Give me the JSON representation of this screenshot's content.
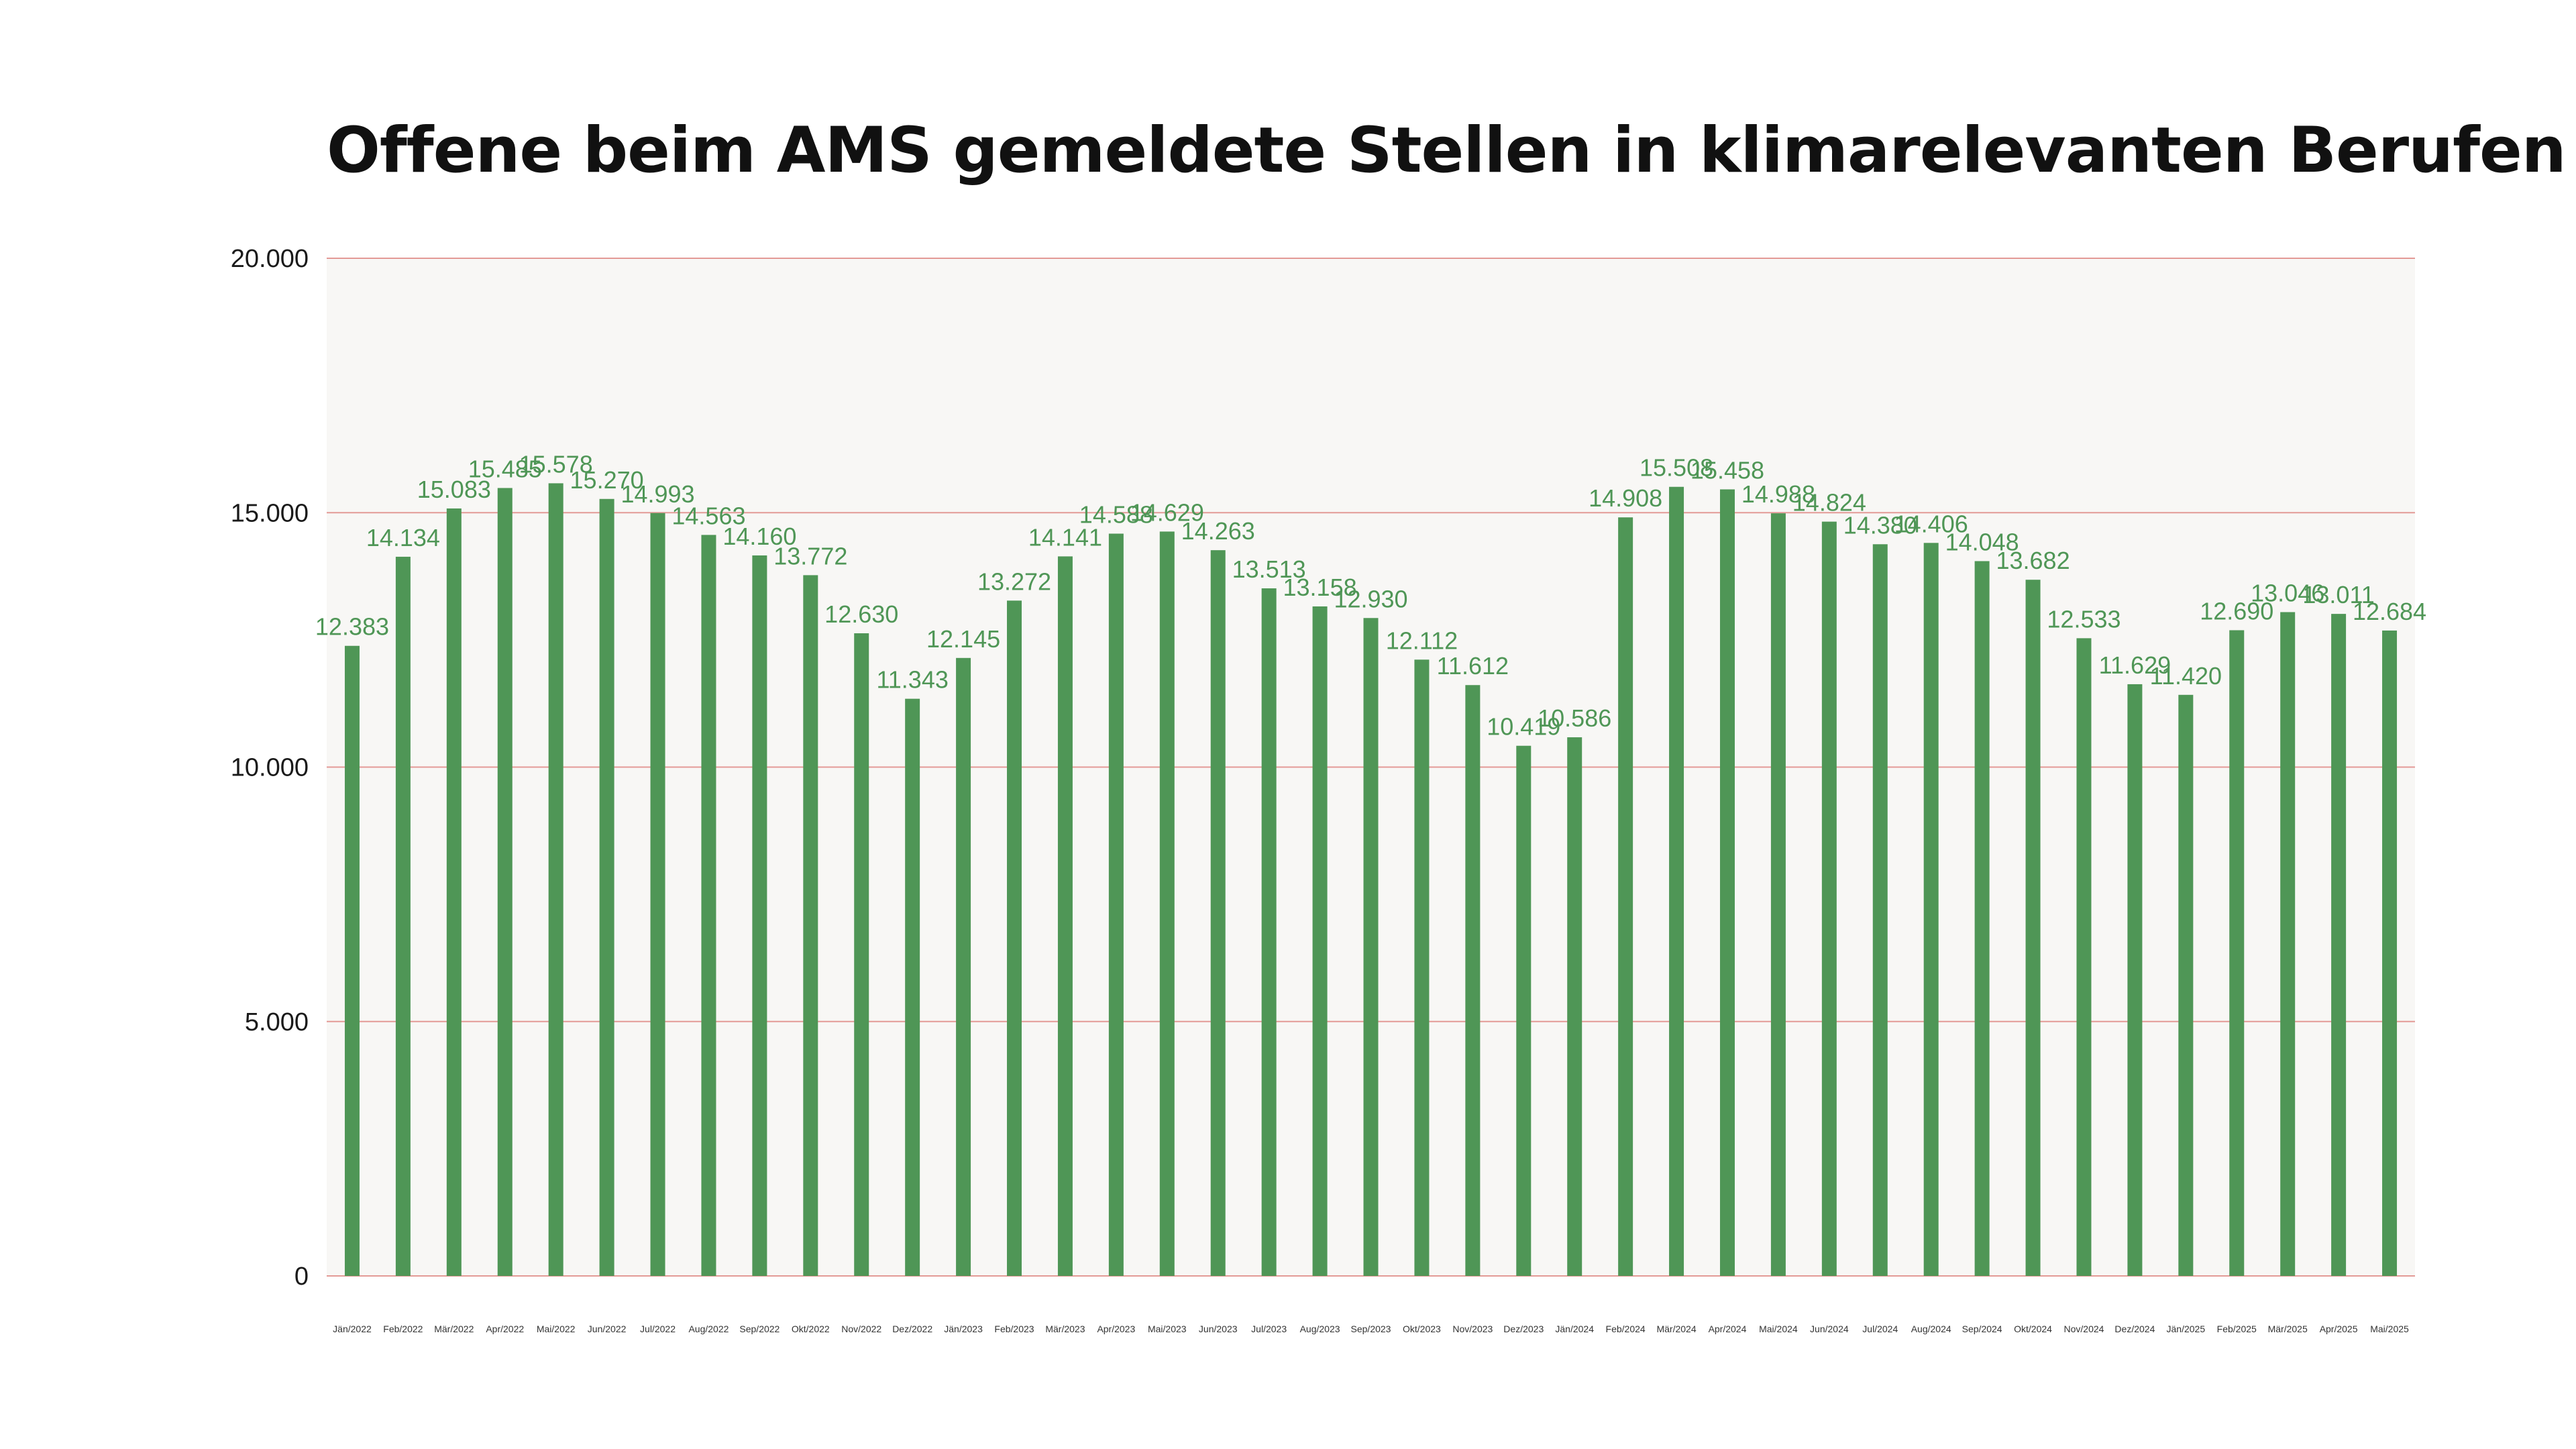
{
  "title": "Offene beim AMS gemeldete Stellen in klimarelevanten Berufen",
  "colors": {
    "bar": "#4f9656",
    "data_label": "#4f9656",
    "plot_background": "#f8f7f5",
    "gridline": "#e39a96",
    "title": "#111111"
  },
  "chart_data": {
    "type": "bar",
    "title": "Offene beim AMS gemeldete Stellen in klimarelevanten Berufen",
    "xlabel": "",
    "ylabel": "",
    "ylim": [
      0,
      20000
    ],
    "yticks": [
      0,
      5000,
      10000,
      15000,
      20000
    ],
    "ytick_labels": [
      "0",
      "5.000",
      "10.000",
      "15.000",
      "20.000"
    ],
    "grid": true,
    "legend": "none",
    "categories": [
      "Jän/2022",
      "Feb/2022",
      "Mär/2022",
      "Apr/2022",
      "Mai/2022",
      "Jun/2022",
      "Jul/2022",
      "Aug/2022",
      "Sep/2022",
      "Okt/2022",
      "Nov/2022",
      "Dez/2022",
      "Jän/2023",
      "Feb/2023",
      "Mär/2023",
      "Apr/2023",
      "Mai/2023",
      "Jun/2023",
      "Jul/2023",
      "Aug/2023",
      "Sep/2023",
      "Okt/2023",
      "Nov/2023",
      "Dez/2023",
      "Jän/2024",
      "Feb/2024",
      "Mär/2024",
      "Apr/2024",
      "Mai/2024",
      "Jun/2024",
      "Jul/2024",
      "Aug/2024",
      "Sep/2024",
      "Okt/2024",
      "Nov/2024",
      "Dez/2024",
      "Jän/2025",
      "Feb/2025",
      "Mär/2025",
      "Apr/2025",
      "Mai/2025"
    ],
    "values": [
      12383,
      14134,
      15083,
      15485,
      15578,
      15270,
      14993,
      14563,
      14160,
      13772,
      12630,
      11343,
      12145,
      13272,
      14141,
      14588,
      14629,
      14263,
      13513,
      13158,
      12930,
      12112,
      11612,
      10419,
      10586,
      14908,
      15508,
      15458,
      14988,
      14824,
      14380,
      14406,
      14048,
      13682,
      12533,
      11629,
      11420,
      12690,
      13046,
      13011,
      12684
    ],
    "value_labels": [
      "12.383",
      "14.134",
      "15.083",
      "15.485",
      "15.578",
      "15.270",
      "14.993",
      "14.563",
      "14.160",
      "13.772",
      "12.630",
      "11.343",
      "12.145",
      "13.272",
      "14.141",
      "14.588",
      "14.629",
      "14.263",
      "13.513",
      "13.158",
      "12.930",
      "12.112",
      "11.612",
      "10.419",
      "10.586",
      "14.908",
      "15.508",
      "15.458",
      "14.988",
      "14.824",
      "14.380",
      "14.406",
      "14.048",
      "13.682",
      "12.533",
      "11.629",
      "11.420",
      "12.690",
      "13.046",
      "13.011",
      "12.684"
    ]
  }
}
